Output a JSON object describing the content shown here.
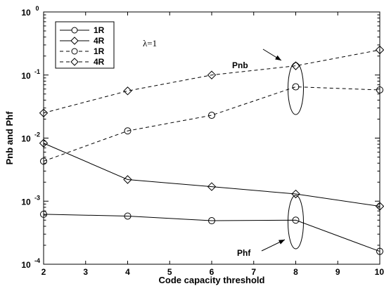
{
  "chart_data": {
    "type": "line",
    "xlabel": "Code capacity threshold",
    "ylabel": "Pnb and Phf",
    "x": [
      2,
      4,
      6,
      8,
      10
    ],
    "xlim": [
      2,
      10
    ],
    "ylim": [
      0.0001,
      1
    ],
    "yscale": "log",
    "x_ticks": [
      "2",
      "3",
      "4",
      "5",
      "6",
      "7",
      "8",
      "9",
      "10"
    ],
    "y_ticks": [
      {
        "base": "10",
        "exp": "-4"
      },
      {
        "base": "10",
        "exp": "-3"
      },
      {
        "base": "10",
        "exp": "-2"
      },
      {
        "base": "10",
        "exp": "-1"
      },
      {
        "base": "10",
        "exp": "0"
      }
    ],
    "grid": false,
    "legend_position": "top-left",
    "series": [
      {
        "name": "1R",
        "style": "solid",
        "marker": "circle",
        "values": [
          0.00062,
          0.00058,
          0.00049,
          0.0005,
          0.00016
        ]
      },
      {
        "name": "4R",
        "style": "solid",
        "marker": "diamond",
        "values": [
          0.0083,
          0.0022,
          0.0017,
          0.0013,
          0.00083
        ]
      },
      {
        "name": "1R",
        "style": "dashed",
        "marker": "circle",
        "values": [
          0.0043,
          0.013,
          0.023,
          0.065,
          0.058
        ]
      },
      {
        "name": "4R",
        "style": "dashed",
        "marker": "diamond",
        "values": [
          0.025,
          0.056,
          0.1,
          0.14,
          0.25
        ]
      }
    ],
    "annotations": [
      {
        "text": "λ=1"
      },
      {
        "text": "Pnb"
      },
      {
        "text": "Phf"
      }
    ]
  }
}
